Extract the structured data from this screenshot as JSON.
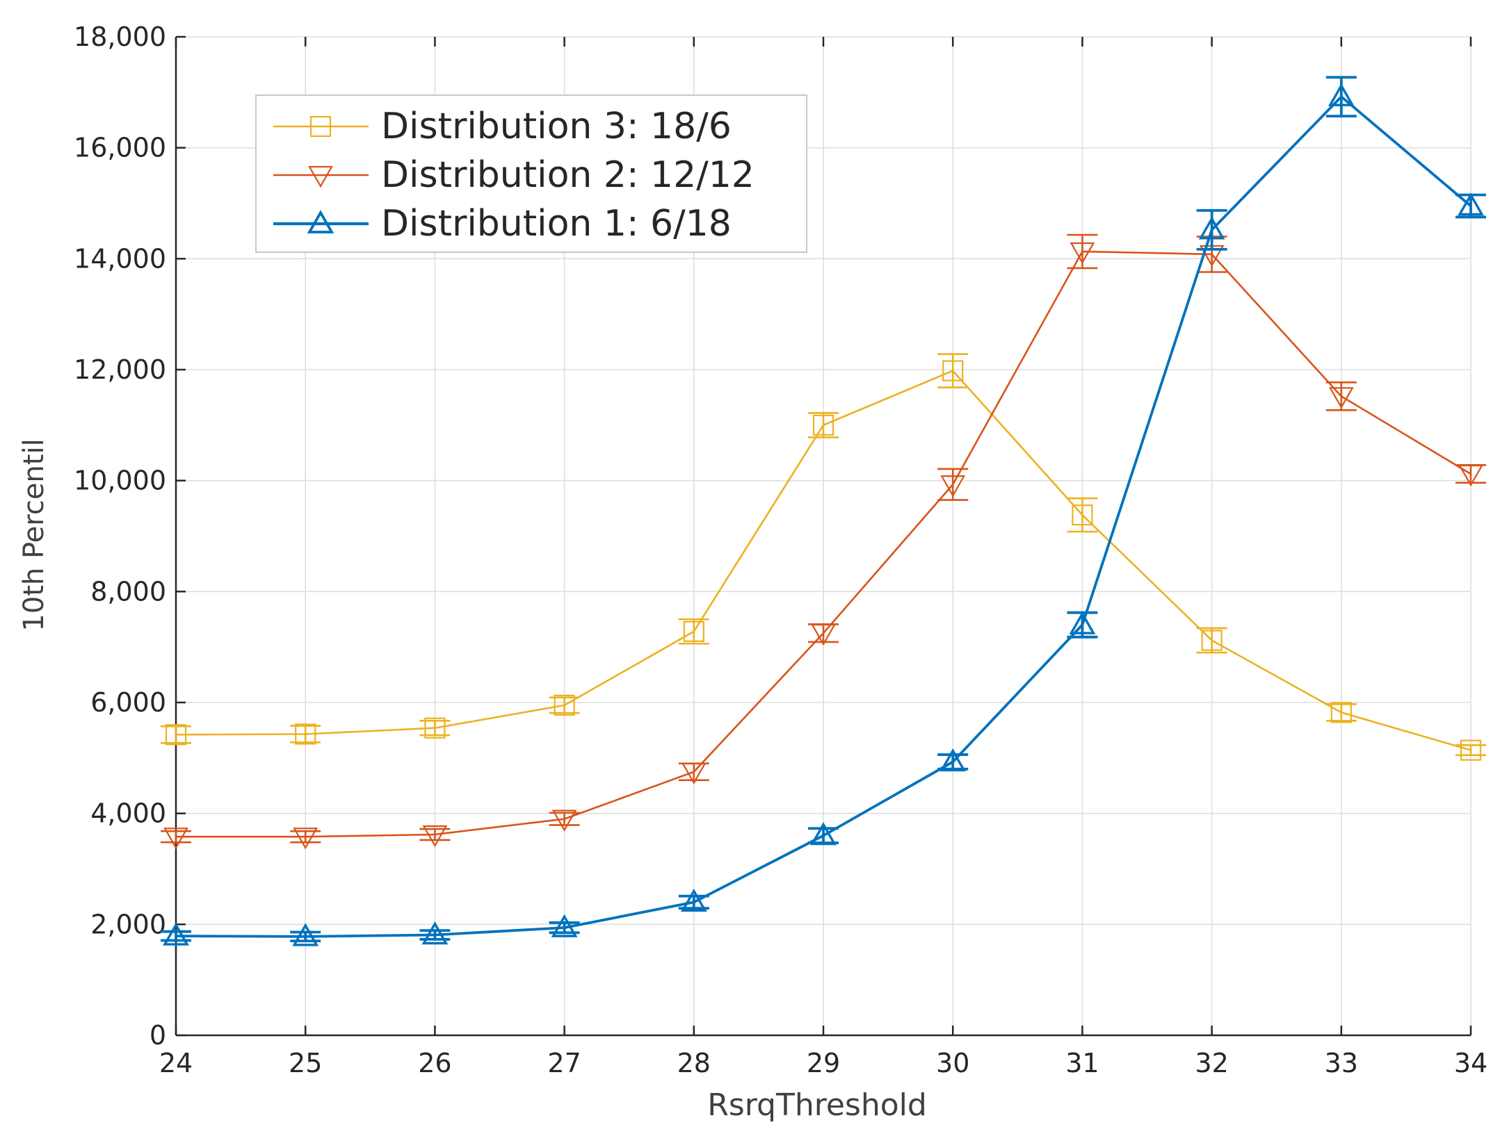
{
  "chart_data": {
    "type": "line",
    "title": "",
    "xlabel": "RsrqThreshold",
    "ylabel": "10th Percentil",
    "x": [
      24,
      25,
      26,
      27,
      28,
      29,
      30,
      31,
      32,
      33,
      34
    ],
    "xlim": [
      24,
      34
    ],
    "ylim": [
      0,
      18000
    ],
    "xticks": [
      24,
      25,
      26,
      27,
      28,
      29,
      30,
      31,
      32,
      33,
      34
    ],
    "xtick_labels": [
      "24",
      "25",
      "26",
      "27",
      "28",
      "29",
      "30",
      "31",
      "32",
      "33",
      "34"
    ],
    "yticks": [
      0,
      2000,
      4000,
      6000,
      8000,
      10000,
      12000,
      14000,
      16000,
      18000
    ],
    "ytick_labels": [
      "0",
      "2,000",
      "4,000",
      "6,000",
      "8,000",
      "10,000",
      "12,000",
      "14,000",
      "16,000",
      "18,000"
    ],
    "grid": true,
    "legend_position": "top-left",
    "series": [
      {
        "name": "Distribution 3:  18/6",
        "color": "#EDB120",
        "marker": "square",
        "line_width": "thin",
        "values": [
          5420,
          5430,
          5540,
          5950,
          7280,
          11000,
          11980,
          9380,
          7120,
          5820,
          5140
        ],
        "errors": [
          150,
          150,
          130,
          140,
          220,
          220,
          300,
          300,
          220,
          150,
          90
        ]
      },
      {
        "name": "Distribution 2:  12/12",
        "color": "#D95319",
        "marker": "triangle-down",
        "line_width": "thin",
        "values": [
          3580,
          3580,
          3620,
          3900,
          4750,
          7250,
          9930,
          14130,
          14080,
          11520,
          10120
        ],
        "errors": [
          100,
          100,
          100,
          110,
          150,
          160,
          280,
          300,
          320,
          250,
          160
        ]
      },
      {
        "name": "Distribution 1:  6/18",
        "color": "#0072BD",
        "marker": "triangle-up",
        "line_width": "thick",
        "values": [
          1790,
          1780,
          1810,
          1940,
          2400,
          3600,
          4930,
          7400,
          14520,
          16920,
          14950
        ],
        "errors": [
          80,
          80,
          80,
          90,
          110,
          130,
          130,
          220,
          350,
          350,
          200
        ]
      }
    ]
  }
}
